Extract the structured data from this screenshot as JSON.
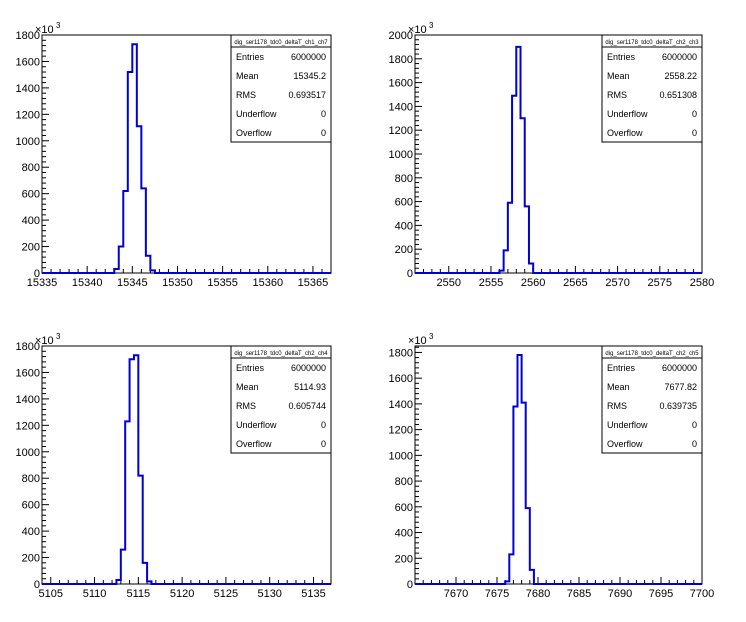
{
  "colors": {
    "histogram": "#0000d6",
    "axis": "#000000",
    "background": "#ffffff"
  },
  "chart_data": [
    {
      "type": "bar",
      "title": "dig_ser1178_tdc0_deltaT_ch1_ch7",
      "xlim": [
        15335,
        15367
      ],
      "x_ticks": [
        15335,
        15340,
        15345,
        15350,
        15355,
        15360,
        15365
      ],
      "ylim": [
        0,
        1800000
      ],
      "y_ticks": [
        0,
        200,
        400,
        600,
        800,
        1000,
        1200,
        1400,
        1600,
        1800
      ],
      "y_multiplier": "×10",
      "y_multiplier_exp": "3",
      "bins": [
        {
          "x0": 15343,
          "x1": 15343.5,
          "y": 30000
        },
        {
          "x0": 15343.5,
          "x1": 15344,
          "y": 200000
        },
        {
          "x0": 15344,
          "x1": 15344.5,
          "y": 620000
        },
        {
          "x0": 15344.5,
          "x1": 15345,
          "y": 1520000
        },
        {
          "x0": 15345,
          "x1": 15345.5,
          "y": 1730000
        },
        {
          "x0": 15345.5,
          "x1": 15346,
          "y": 1110000
        },
        {
          "x0": 15346,
          "x1": 15346.5,
          "y": 640000
        },
        {
          "x0": 15346.5,
          "x1": 15347,
          "y": 130000
        },
        {
          "x0": 15347,
          "x1": 15347.5,
          "y": 20000
        }
      ],
      "stats": [
        {
          "label": "Entries",
          "value": "6000000"
        },
        {
          "label": "Mean",
          "value": "15345.2"
        },
        {
          "label": "RMS",
          "value": "0.693517"
        },
        {
          "label": "Underflow",
          "value": "0"
        },
        {
          "label": "Overflow",
          "value": "0"
        }
      ]
    },
    {
      "type": "bar",
      "title": "dig_ser1178_tdc0_deltaT_ch2_ch3",
      "xlim": [
        2546,
        2580
      ],
      "x_ticks": [
        2550,
        2555,
        2560,
        2565,
        2570,
        2575,
        2580
      ],
      "ylim": [
        0,
        2000000
      ],
      "y_ticks": [
        0,
        200,
        400,
        600,
        800,
        1000,
        1200,
        1400,
        1600,
        1800,
        2000
      ],
      "y_multiplier": "×10",
      "y_multiplier_exp": "3",
      "bins": [
        {
          "x0": 2556,
          "x1": 2556.5,
          "y": 20000
        },
        {
          "x0": 2556.5,
          "x1": 2557,
          "y": 190000
        },
        {
          "x0": 2557,
          "x1": 2557.5,
          "y": 590000
        },
        {
          "x0": 2557.5,
          "x1": 2558,
          "y": 1490000
        },
        {
          "x0": 2558,
          "x1": 2558.5,
          "y": 1900000
        },
        {
          "x0": 2558.5,
          "x1": 2559,
          "y": 1300000
        },
        {
          "x0": 2559,
          "x1": 2559.5,
          "y": 560000
        },
        {
          "x0": 2559.5,
          "x1": 2560,
          "y": 80000
        }
      ],
      "stats": [
        {
          "label": "Entries",
          "value": "6000000"
        },
        {
          "label": "Mean",
          "value": "2558.22"
        },
        {
          "label": "RMS",
          "value": "0.651308"
        },
        {
          "label": "Underflow",
          "value": "0"
        },
        {
          "label": "Overflow",
          "value": "0"
        }
      ]
    },
    {
      "type": "bar",
      "title": "dig_ser1178_tdc0_deltaT_ch2_ch4",
      "xlim": [
        5104,
        5137
      ],
      "x_ticks": [
        5105,
        5110,
        5115,
        5120,
        5125,
        5130,
        5135
      ],
      "ylim": [
        0,
        1800000
      ],
      "y_ticks": [
        0,
        200,
        400,
        600,
        800,
        1000,
        1200,
        1400,
        1600,
        1800
      ],
      "y_multiplier": "×10",
      "y_multiplier_exp": "3",
      "bins": [
        {
          "x0": 5112.5,
          "x1": 5113,
          "y": 30000
        },
        {
          "x0": 5113,
          "x1": 5113.5,
          "y": 260000
        },
        {
          "x0": 5113.5,
          "x1": 5114,
          "y": 1230000
        },
        {
          "x0": 5114,
          "x1": 5114.5,
          "y": 1700000
        },
        {
          "x0": 5114.5,
          "x1": 5115,
          "y": 1730000
        },
        {
          "x0": 5115,
          "x1": 5115.5,
          "y": 820000
        },
        {
          "x0": 5115.5,
          "x1": 5116,
          "y": 160000
        },
        {
          "x0": 5116,
          "x1": 5116.5,
          "y": 20000
        }
      ],
      "stats": [
        {
          "label": "Entries",
          "value": "6000000"
        },
        {
          "label": "Mean",
          "value": "5114.93"
        },
        {
          "label": "RMS",
          "value": "0.605744"
        },
        {
          "label": "Underflow",
          "value": "0"
        },
        {
          "label": "Overflow",
          "value": "0"
        }
      ]
    },
    {
      "type": "bar",
      "title": "dig_ser1178_tdc0_deltaT_ch2_ch5",
      "xlim": [
        7665,
        7700
      ],
      "x_ticks": [
        7670,
        7675,
        7680,
        7685,
        7690,
        7695,
        7700
      ],
      "ylim": [
        0,
        1850000
      ],
      "y_ticks": [
        0,
        200,
        400,
        600,
        800,
        1000,
        1200,
        1400,
        1600,
        1800
      ],
      "y_multiplier": "×10",
      "y_multiplier_exp": "3",
      "bins": [
        {
          "x0": 7676,
          "x1": 7676.5,
          "y": 20000
        },
        {
          "x0": 7676.5,
          "x1": 7677,
          "y": 230000
        },
        {
          "x0": 7677,
          "x1": 7677.5,
          "y": 1380000
        },
        {
          "x0": 7677.5,
          "x1": 7678,
          "y": 1780000
        },
        {
          "x0": 7678,
          "x1": 7678.5,
          "y": 1410000
        },
        {
          "x0": 7678.5,
          "x1": 7679,
          "y": 590000
        },
        {
          "x0": 7679,
          "x1": 7679.5,
          "y": 110000
        }
      ],
      "stats": [
        {
          "label": "Entries",
          "value": "6000000"
        },
        {
          "label": "Mean",
          "value": "7677.82"
        },
        {
          "label": "RMS",
          "value": "0.639735"
        },
        {
          "label": "Underflow",
          "value": "0"
        },
        {
          "label": "Overflow",
          "value": "0"
        }
      ]
    }
  ]
}
